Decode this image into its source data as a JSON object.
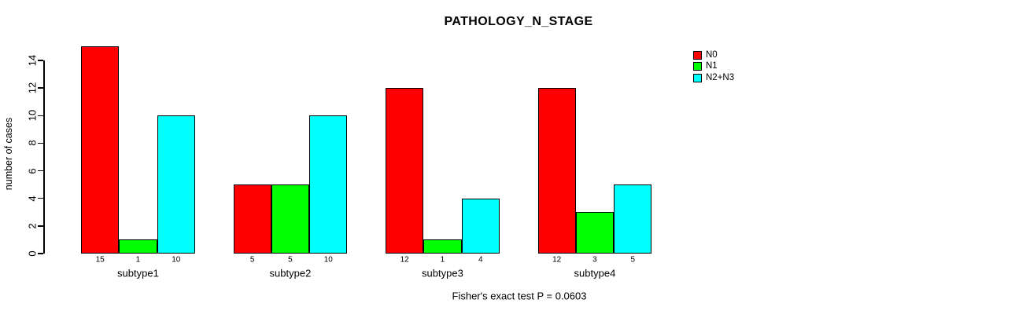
{
  "chart_data": {
    "type": "bar",
    "title": "PATHOLOGY_N_STAGE",
    "xlabel": "",
    "ylabel": "number of cases",
    "categories": [
      "subtype1",
      "subtype2",
      "subtype3",
      "subtype4"
    ],
    "series": [
      {
        "name": "N0",
        "color": "#FF0000",
        "values": [
          15,
          5,
          12,
          12
        ]
      },
      {
        "name": "N1",
        "color": "#00FF00",
        "values": [
          1,
          5,
          1,
          3
        ]
      },
      {
        "name": "N2+N3",
        "color": "#00FFFF",
        "values": [
          10,
          10,
          4,
          5
        ]
      }
    ],
    "bar_value_labels": [
      [
        "15",
        "1",
        "10"
      ],
      [
        "5",
        "5",
        "10"
      ],
      [
        "12",
        "1",
        "4"
      ],
      [
        "12",
        "3",
        "5"
      ]
    ],
    "yticks": [
      0,
      2,
      4,
      6,
      8,
      10,
      12,
      14
    ],
    "ylim": [
      0,
      15
    ],
    "grid": false,
    "legend_position": "top-right",
    "annotation": "Fisher's exact test P = 0.0603",
    "colors": {
      "background": "#FFFFFF",
      "axis": "#000000",
      "bar_border": "#000000"
    }
  }
}
